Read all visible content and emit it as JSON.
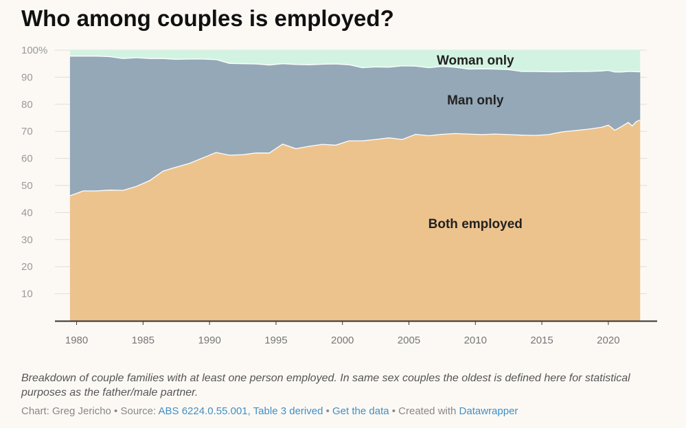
{
  "title": "Who among couples is employed?",
  "description": "Breakdown of couple families with at least one person employed. In same sex couples the oldest is defined here for statistical purposes as the father/male partner.",
  "footer": {
    "chart_prefix": "Chart: Greg Jericho",
    "sep1": " • Source: ",
    "source_link": "ABS 6224.0.55.001, Table 3 derived",
    "sep2": " • ",
    "data_link": "Get the data",
    "sep3": " • Created with ",
    "credit_link": "Datawrapper"
  },
  "colors": {
    "both": "#edc38d",
    "man": "#94a8b8",
    "woman": "#d3f3e2",
    "axis": "#333333",
    "tick_text": "#999999",
    "grid": "#e2dcd5"
  },
  "chart_data": {
    "type": "area",
    "stacked": true,
    "xlim": [
      1979.3,
      2022.9
    ],
    "ylim": [
      0,
      100
    ],
    "y_ticks": [
      10,
      20,
      30,
      40,
      50,
      60,
      70,
      80,
      90,
      100
    ],
    "y_tick_labels": [
      "10",
      "20",
      "30",
      "40",
      "50",
      "60",
      "70",
      "80",
      "90",
      "100%"
    ],
    "x_ticks": [
      1980,
      1985,
      1990,
      1995,
      2000,
      2005,
      2010,
      2015,
      2020
    ],
    "grid": true,
    "x": [
      1979.5,
      1980.5,
      1981.5,
      1982.5,
      1983.5,
      1984.5,
      1985.5,
      1986.5,
      1987.5,
      1988.5,
      1989.5,
      1990.5,
      1991.5,
      1992.5,
      1993.5,
      1994.5,
      1995.5,
      1996.5,
      1997.5,
      1998.5,
      1999.5,
      2000.5,
      2001.5,
      2002.5,
      2003.5,
      2004.5,
      2005.5,
      2006.5,
      2007.5,
      2008.5,
      2009.5,
      2010.5,
      2011.5,
      2012.5,
      2013.5,
      2014.5,
      2015.5,
      2016.5,
      2017.5,
      2018.5,
      2019.5,
      2020.0,
      2020.5,
      2021.0,
      2021.5,
      2021.8,
      2022.1,
      2022.4
    ],
    "series": [
      {
        "name": "Both employed",
        "values": [
          46.2,
          48.0,
          48.0,
          48.3,
          48.2,
          49.7,
          51.8,
          55.3,
          56.8,
          58.2,
          60.2,
          62.2,
          61.2,
          61.4,
          62.0,
          62.0,
          65.3,
          63.6,
          64.5,
          65.2,
          64.9,
          66.5,
          66.5,
          67.0,
          67.6,
          67.0,
          68.9,
          68.4,
          68.9,
          69.2,
          69.0,
          68.8,
          69.0,
          68.8,
          68.6,
          68.5,
          68.8,
          69.8,
          70.3,
          70.8,
          71.5,
          72.3,
          70.4,
          71.8,
          73.3,
          72.0,
          73.6,
          74.2
        ]
      },
      {
        "name": "Man only",
        "values": [
          51.6,
          49.8,
          49.8,
          49.3,
          48.7,
          47.5,
          45.1,
          41.6,
          39.8,
          38.5,
          36.5,
          34.3,
          33.9,
          33.6,
          32.9,
          32.5,
          29.7,
          31.1,
          30.1,
          29.6,
          30.0,
          28.1,
          27.0,
          26.8,
          26.1,
          27.2,
          25.2,
          25.1,
          25.1,
          24.5,
          24.0,
          24.3,
          24.0,
          24.0,
          23.5,
          23.6,
          23.2,
          22.2,
          21.8,
          21.3,
          20.8,
          20.2,
          21.5,
          20.1,
          18.8,
          20.1,
          18.4,
          17.8
        ]
      },
      {
        "name": "Woman only",
        "values": [
          2.2,
          2.2,
          2.2,
          2.4,
          3.1,
          2.8,
          3.1,
          3.1,
          3.4,
          3.3,
          3.3,
          3.5,
          4.9,
          5.0,
          5.1,
          5.5,
          5.0,
          5.3,
          5.4,
          5.2,
          5.1,
          5.4,
          6.5,
          6.2,
          6.3,
          5.8,
          5.9,
          6.5,
          6.0,
          6.3,
          7.0,
          6.9,
          7.0,
          7.2,
          7.9,
          7.9,
          8.0,
          8.0,
          7.9,
          7.9,
          7.7,
          7.5,
          8.1,
          8.1,
          7.9,
          7.9,
          8.0,
          8.0
        ]
      }
    ],
    "annotations": [
      {
        "text": "Woman only",
        "x": 2010.0,
        "y": 96.2
      },
      {
        "text": "Man only",
        "x": 2010.0,
        "y": 81.5
      },
      {
        "text": "Both employed",
        "x": 2010.0,
        "y": 35.8
      }
    ]
  }
}
